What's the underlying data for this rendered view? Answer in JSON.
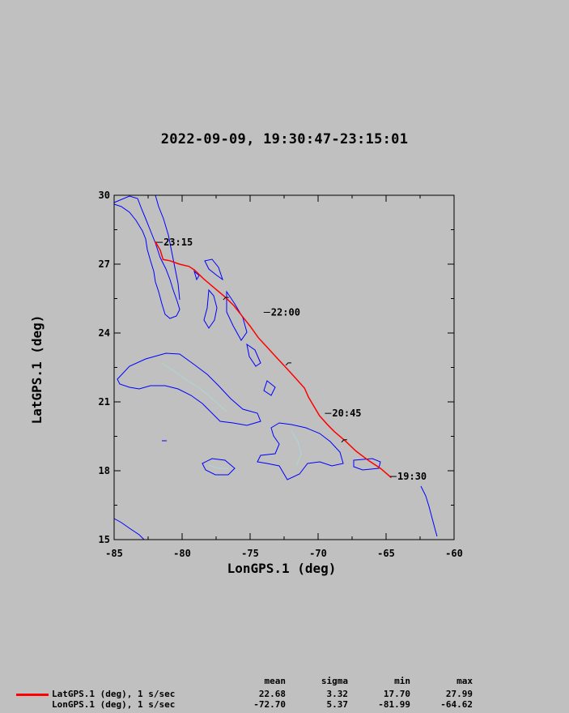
{
  "title": "2022-09-09, 19:30:47-23:15:01",
  "colors": {
    "background": "#c0c0c0",
    "track": "#ff0000",
    "coast": "#0000ff",
    "rivers": "#a8d8d8"
  },
  "chart_data": {
    "type": "line",
    "xlabel": "LonGPS.1 (deg)",
    "ylabel": "LatGPS.1 (deg)",
    "xlim": [
      -85,
      -60
    ],
    "ylim": [
      15,
      30
    ],
    "xticks": [
      -85,
      -80,
      -75,
      -70,
      -65,
      -60
    ],
    "yticks": [
      15,
      18,
      21,
      24,
      27,
      30
    ],
    "xtick_labels": [
      "-85",
      "-80",
      "-75",
      "-70",
      "-65",
      "-60"
    ],
    "ytick_labels": [
      "15",
      "18",
      "21",
      "24",
      "27",
      "30"
    ],
    "grid": false,
    "series": [
      {
        "name": "LatGPS.1 (deg), 1 s/sec",
        "color": "#ff0000",
        "x": [
          -64.62,
          -65.4,
          -66.3,
          -67.2,
          -68.0,
          -68.8,
          -69.3,
          -69.9,
          -70.3,
          -70.7,
          -71.0,
          -71.6,
          -72.3,
          -73.0,
          -73.7,
          -74.4,
          -75.0,
          -75.6,
          -76.2,
          -76.9,
          -77.6,
          -78.4,
          -79.1,
          -79.5,
          -80.2,
          -80.9,
          -81.4,
          -81.5,
          -81.6,
          -81.8,
          -81.99,
          -81.9
        ],
        "y": [
          17.7,
          18.1,
          18.45,
          18.85,
          19.3,
          19.7,
          20.0,
          20.4,
          20.8,
          21.2,
          21.6,
          22.0,
          22.45,
          22.9,
          23.35,
          23.8,
          24.3,
          24.75,
          25.2,
          25.6,
          25.95,
          26.35,
          26.75,
          26.9,
          27.0,
          27.15,
          27.2,
          27.4,
          27.6,
          27.8,
          27.99,
          27.85
        ]
      }
    ],
    "time_marks": [
      {
        "label": "19:30",
        "x": -64.7,
        "y": 17.75
      },
      {
        "label": "20:45",
        "x": -69.5,
        "y": 20.5
      },
      {
        "label": "22:00",
        "x": -74.0,
        "y": 24.9
      },
      {
        "label": "23:15",
        "x": -81.9,
        "y": 27.95
      }
    ],
    "minor_ticks": [
      {
        "x": -76.8,
        "y": 25.55
      },
      {
        "x": -72.2,
        "y": 22.7
      },
      {
        "x": -68.1,
        "y": 19.35
      }
    ]
  },
  "stats": {
    "headers": [
      "mean",
      "sigma",
      "min",
      "max"
    ],
    "rows": [
      {
        "name": "LatGPS.1 (deg), 1 s/sec",
        "values": [
          "22.68",
          "3.32",
          "17.70",
          "27.99"
        ]
      },
      {
        "name": "LonGPS.1 (deg), 1 s/sec",
        "values": [
          "-72.70",
          "5.37",
          "-81.99",
          "-64.62"
        ]
      }
    ]
  }
}
